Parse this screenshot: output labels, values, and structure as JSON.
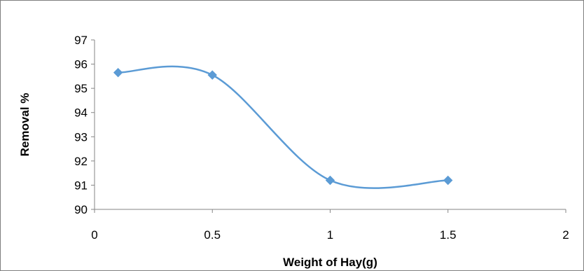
{
  "chart_data": {
    "type": "line",
    "title": "",
    "xlabel": "Weight of Hay(g)",
    "ylabel": "Removal %",
    "xlim": [
      0,
      2
    ],
    "ylim": [
      90,
      97
    ],
    "xticks": [
      "0",
      "0.5",
      "1",
      "1.5",
      "2"
    ],
    "yticks": [
      "90",
      "91",
      "92",
      "93",
      "94",
      "95",
      "96",
      "97"
    ],
    "grid": false,
    "legend": "none",
    "smooth": true,
    "series": [
      {
        "color": "#5b9bd5",
        "marker": "diamond",
        "points": [
          {
            "x": 0.1,
            "y": 95.65
          },
          {
            "x": 0.5,
            "y": 95.55
          },
          {
            "x": 1.0,
            "y": 91.2
          },
          {
            "x": 1.5,
            "y": 91.2
          }
        ]
      }
    ]
  }
}
